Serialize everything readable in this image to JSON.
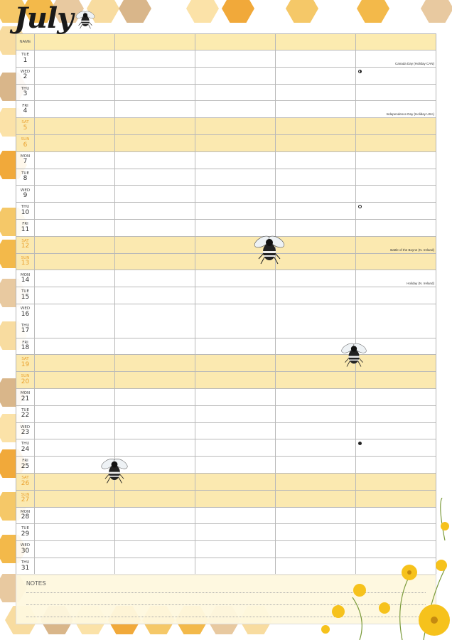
{
  "month": "July",
  "header": {
    "name_label": "NAME",
    "columns": 5
  },
  "colors": {
    "weekend_bg": "#fbe9b0",
    "weekend_text": "#eaa22f",
    "header_bg": "#fcebb0",
    "honey": "#f5b84a"
  },
  "days": [
    {
      "dow": "TUE",
      "num": "1",
      "holiday": "Canada Day (Holiday CAN)"
    },
    {
      "dow": "WED",
      "num": "2",
      "moon": "first-quarter"
    },
    {
      "dow": "THU",
      "num": "3"
    },
    {
      "dow": "FRI",
      "num": "4",
      "holiday": "Independence Day (Holiday USA)"
    },
    {
      "dow": "SAT",
      "num": "5",
      "weekend": true
    },
    {
      "dow": "SUN",
      "num": "6",
      "weekend": true
    },
    {
      "dow": "MON",
      "num": "7"
    },
    {
      "dow": "TUE",
      "num": "8"
    },
    {
      "dow": "WED",
      "num": "9"
    },
    {
      "dow": "THU",
      "num": "10",
      "moon": "full"
    },
    {
      "dow": "FRI",
      "num": "11"
    },
    {
      "dow": "SAT",
      "num": "12",
      "weekend": true,
      "holiday": "Battle of the Boyne (N. Ireland)"
    },
    {
      "dow": "SUN",
      "num": "13",
      "weekend": true
    },
    {
      "dow": "MON",
      "num": "14",
      "holiday": "Holiday (N. Ireland)"
    },
    {
      "dow": "TUE",
      "num": "15"
    },
    {
      "dow": "WED",
      "num": "16",
      "merged_with": {
        "dow": "THU",
        "num": "17"
      }
    },
    {
      "dow": "FRI",
      "num": "18"
    },
    {
      "dow": "SAT",
      "num": "19",
      "weekend": true
    },
    {
      "dow": "SUN",
      "num": "20",
      "weekend": true
    },
    {
      "dow": "MON",
      "num": "21"
    },
    {
      "dow": "TUE",
      "num": "22"
    },
    {
      "dow": "WED",
      "num": "23"
    },
    {
      "dow": "THU",
      "num": "24",
      "moon": "new"
    },
    {
      "dow": "FRI",
      "num": "25"
    },
    {
      "dow": "SAT",
      "num": "26",
      "weekend": true
    },
    {
      "dow": "SUN",
      "num": "27",
      "weekend": true
    },
    {
      "dow": "MON",
      "num": "28"
    },
    {
      "dow": "TUE",
      "num": "29"
    },
    {
      "dow": "WED",
      "num": "30"
    },
    {
      "dow": "THU",
      "num": "31"
    }
  ],
  "notes": {
    "label": "NOTES"
  }
}
